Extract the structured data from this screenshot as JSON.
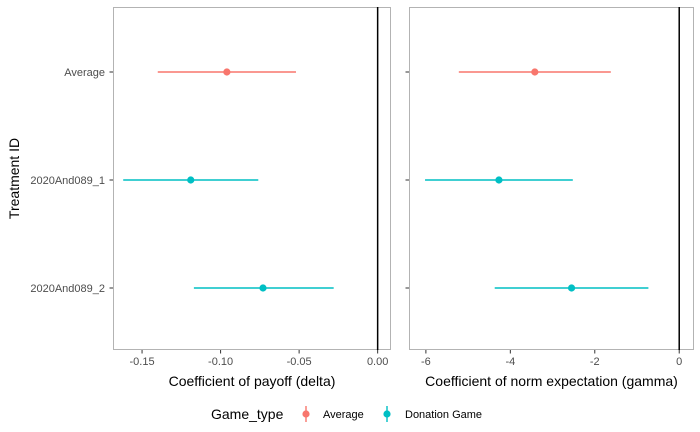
{
  "chart_data": {
    "type": "errorbar",
    "ylabel": "Treatment ID",
    "categories": [
      "Average",
      "2020And089_1",
      "2020And089_2"
    ],
    "colors": {
      "Average": "#F8766D",
      "Donation Game": "#00BFC4"
    },
    "legend": {
      "title": "Game_type",
      "position": "bottom",
      "entries": [
        "Average",
        "Donation Game"
      ]
    },
    "panels": [
      {
        "xlabel": "Coefficient of payoff (delta)",
        "xlim": [
          -0.1685,
          0.0085
        ],
        "ticks": [
          -0.15,
          -0.1,
          -0.05,
          0.0
        ],
        "tick_labels": [
          "-0.15",
          "-0.10",
          "-0.05",
          "0.00"
        ],
        "reference_line": 0,
        "points": [
          {
            "category": "Average",
            "group": "Average",
            "estimate": -0.096,
            "lower": -0.14,
            "upper": -0.052
          },
          {
            "category": "2020And089_1",
            "group": "Donation Game",
            "estimate": -0.119,
            "lower": -0.162,
            "upper": -0.076
          },
          {
            "category": "2020And089_2",
            "group": "Donation Game",
            "estimate": -0.073,
            "lower": -0.117,
            "upper": -0.028
          }
        ]
      },
      {
        "xlabel": "Coefficient of norm expectation (gamma)",
        "xlim": [
          -6.4,
          0.35
        ],
        "ticks": [
          -6,
          -4,
          -2,
          0
        ],
        "tick_labels": [
          "-6",
          "-4",
          "-2",
          "0"
        ],
        "reference_line": 0,
        "points": [
          {
            "category": "Average",
            "group": "Average",
            "estimate": -3.42,
            "lower": -5.22,
            "upper": -1.62
          },
          {
            "category": "2020And089_1",
            "group": "Donation Game",
            "estimate": -4.27,
            "lower": -6.02,
            "upper": -2.52
          },
          {
            "category": "2020And089_2",
            "group": "Donation Game",
            "estimate": -2.55,
            "lower": -4.37,
            "upper": -0.73
          }
        ]
      }
    ]
  }
}
